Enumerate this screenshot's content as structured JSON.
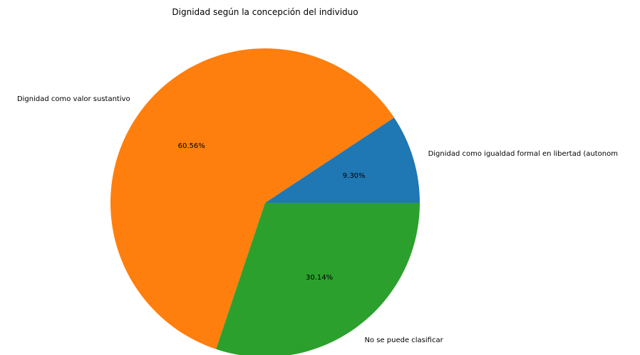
{
  "chart_data": {
    "type": "pie",
    "title": "Dignidad según la concepción del individuo",
    "start_angle_deg": 0,
    "direction": "counterclockwise",
    "slices": [
      {
        "label": "Dignidad como igualdad formal en libertad (autonom",
        "value": 9.3,
        "pct_label": "9.30%",
        "color": "#1f77b4"
      },
      {
        "label": "Dignidad como valor sustantivo",
        "value": 60.56,
        "pct_label": "60.56%",
        "color": "#ff7f0e"
      },
      {
        "label": "No se puede clasificar",
        "value": 30.14,
        "pct_label": "30.14%",
        "color": "#2ca02c"
      }
    ]
  }
}
